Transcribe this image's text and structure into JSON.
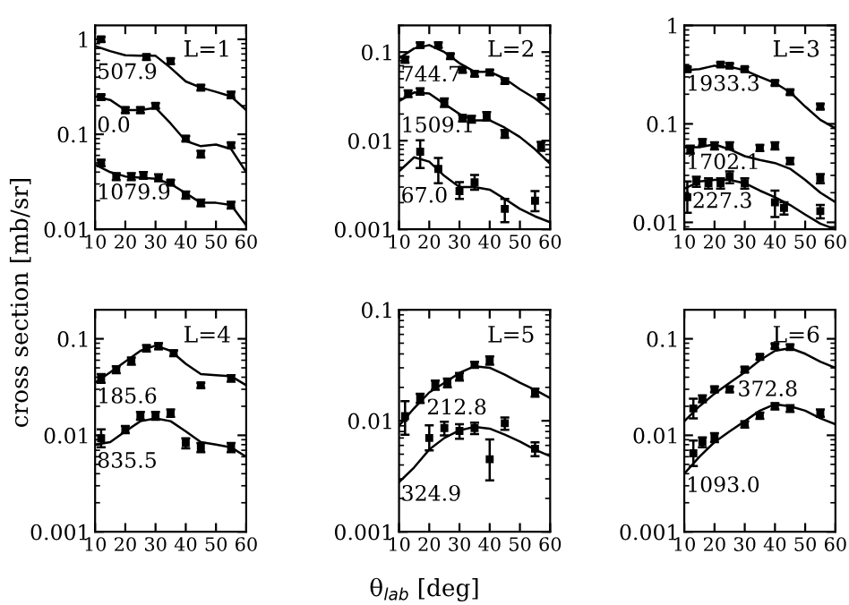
{
  "chart_data": [
    {
      "type": "scatter",
      "title": "L=1",
      "ylabel": "cross section [mb/sr]",
      "log": "y",
      "xlim": [
        10,
        60
      ],
      "xticks": [
        10,
        20,
        30,
        40,
        50,
        60
      ],
      "ylim": [
        0.01,
        1.4
      ],
      "yticks": [
        0.01,
        0.1,
        1
      ],
      "series": [
        {
          "name": "507.9",
          "marker": "square",
          "color": "#000000",
          "x": [
            12,
            27,
            35,
            45,
            55
          ],
          "values": [
            1.0,
            0.65,
            0.59,
            0.31,
            0.26
          ],
          "errors": [
            0.06,
            0.04,
            0.04,
            0.02,
            0.02
          ]
        },
        {
          "type": "line",
          "color": "#000000",
          "x": [
            10,
            15,
            20,
            25,
            30,
            35,
            40,
            45,
            50,
            55,
            60
          ],
          "values": [
            0.85,
            0.75,
            0.68,
            0.67,
            0.67,
            0.5,
            0.36,
            0.31,
            0.28,
            0.25,
            0.18
          ]
        },
        {
          "name": "0.0",
          "marker": "square",
          "color": "#000000",
          "x": [
            12,
            20,
            25,
            30,
            40,
            45,
            55
          ],
          "values": [
            0.246,
            0.18,
            0.18,
            0.2,
            0.09,
            0.062,
            0.077
          ],
          "errors": [
            0.015,
            0.012,
            0.012,
            0.013,
            0.006,
            0.005,
            0.005
          ]
        },
        {
          "type": "line",
          "color": "#000000",
          "x": [
            10,
            15,
            20,
            25,
            30,
            35,
            40,
            45,
            50,
            55,
            60
          ],
          "values": [
            0.25,
            0.23,
            0.18,
            0.18,
            0.19,
            0.13,
            0.085,
            0.075,
            0.078,
            0.07,
            0.04
          ]
        },
        {
          "name": "1079.9",
          "marker": "square",
          "color": "#000000",
          "x": [
            12,
            17,
            22,
            26,
            31,
            35,
            40,
            45,
            55
          ],
          "values": [
            0.05,
            0.036,
            0.036,
            0.037,
            0.035,
            0.031,
            0.023,
            0.019,
            0.018
          ],
          "errors": [
            0.004,
            0.003,
            0.003,
            0.003,
            0.003,
            0.002,
            0.002,
            0.0015,
            0.0015
          ]
        },
        {
          "type": "line",
          "color": "#000000",
          "x": [
            10,
            15,
            20,
            25,
            30,
            35,
            40,
            45,
            50,
            55,
            60
          ],
          "values": [
            0.048,
            0.04,
            0.036,
            0.035,
            0.034,
            0.03,
            0.024,
            0.019,
            0.019,
            0.018,
            0.011
          ]
        }
      ]
    },
    {
      "type": "scatter",
      "title": "L=2",
      "log": "y",
      "xlim": [
        10,
        60
      ],
      "xticks": [
        10,
        20,
        30,
        40,
        50,
        60
      ],
      "ylim": [
        0.001,
        0.2
      ],
      "yticks": [
        0.001,
        0.01,
        0.1
      ],
      "series": [
        {
          "name": "744.7",
          "marker": "square",
          "color": "#000000",
          "x": [
            12,
            17,
            23,
            27,
            31,
            35,
            40,
            45,
            57
          ],
          "values": [
            0.082,
            0.12,
            0.12,
            0.09,
            0.063,
            0.057,
            0.059,
            0.047,
            0.031
          ],
          "errors": [
            0.006,
            0.008,
            0.008,
            0.006,
            0.004,
            0.004,
            0.004,
            0.003,
            0.002
          ]
        },
        {
          "type": "line",
          "color": "#000000",
          "x": [
            10,
            15,
            20,
            25,
            30,
            35,
            40,
            45,
            50,
            55,
            60
          ],
          "values": [
            0.085,
            0.11,
            0.12,
            0.1,
            0.075,
            0.06,
            0.06,
            0.05,
            0.038,
            0.03,
            0.022
          ]
        },
        {
          "name": "1509.1",
          "marker": "square",
          "color": "#000000",
          "x": [
            13,
            17,
            25,
            31,
            34,
            39,
            45,
            57
          ],
          "values": [
            0.034,
            0.036,
            0.027,
            0.018,
            0.0175,
            0.019,
            0.012,
            0.0087
          ],
          "errors": [
            0.003,
            0.003,
            0.003,
            0.0015,
            0.0015,
            0.002,
            0.0012,
            0.001
          ]
        },
        {
          "type": "line",
          "color": "#000000",
          "x": [
            10,
            15,
            20,
            25,
            30,
            35,
            40,
            45,
            50,
            55,
            60
          ],
          "values": [
            0.028,
            0.035,
            0.034,
            0.026,
            0.02,
            0.017,
            0.017,
            0.014,
            0.011,
            0.008,
            0.0055
          ]
        },
        {
          "name": "67.0",
          "marker": "square",
          "color": "#000000",
          "x": [
            17,
            23,
            30,
            35,
            45,
            55
          ],
          "values": [
            0.0075,
            0.0048,
            0.0027,
            0.0034,
            0.0017,
            0.0021
          ],
          "errors": [
            [
              0.0049,
              0.0101
            ],
            [
              0.0033,
              0.0064
            ],
            [
              0.0022,
              0.0034
            ],
            [
              0.0028,
              0.0041
            ],
            [
              0.0012,
              0.0022
            ],
            [
              0.0016,
              0.0027
            ]
          ]
        },
        {
          "type": "line",
          "color": "#000000",
          "x": [
            10,
            15,
            20,
            25,
            30,
            35,
            40,
            45,
            50,
            55,
            60
          ],
          "values": [
            0.0045,
            0.0065,
            0.0058,
            0.004,
            0.003,
            0.003,
            0.0028,
            0.0022,
            0.0017,
            0.0014,
            0.0012
          ]
        }
      ]
    },
    {
      "type": "scatter",
      "title": "L=3",
      "log": "y",
      "xlim": [
        10,
        60
      ],
      "xticks": [
        10,
        20,
        30,
        40,
        50,
        60
      ],
      "ylim": [
        0.0085,
        1
      ],
      "yticks": [
        0.01,
        0.1,
        1
      ],
      "series": [
        {
          "name": "1933.3",
          "marker": "square",
          "color": "#000000",
          "x": [
            11,
            22,
            25,
            30,
            40,
            45,
            55
          ],
          "values": [
            0.36,
            0.4,
            0.39,
            0.36,
            0.26,
            0.21,
            0.15
          ],
          "errors": [
            0.02,
            0.02,
            0.02,
            0.02,
            0.015,
            0.012,
            0.01
          ]
        },
        {
          "type": "line",
          "color": "#000000",
          "x": [
            10,
            15,
            20,
            25,
            30,
            35,
            40,
            45,
            50,
            55,
            60
          ],
          "values": [
            0.35,
            0.36,
            0.39,
            0.38,
            0.35,
            0.3,
            0.26,
            0.21,
            0.15,
            0.11,
            0.09
          ]
        },
        {
          "name": "1702.1",
          "marker": "square",
          "color": "#000000",
          "x": [
            12,
            16,
            20,
            25,
            35,
            40,
            45,
            55
          ],
          "values": [
            0.055,
            0.065,
            0.06,
            0.06,
            0.057,
            0.06,
            0.042,
            0.028
          ],
          "errors": [
            0.005,
            0.005,
            0.005,
            0.005,
            0.004,
            0.005,
            0.003,
            0.003
          ]
        },
        {
          "type": "line",
          "color": "#000000",
          "x": [
            10,
            15,
            20,
            25,
            30,
            35,
            40,
            45,
            50,
            55,
            60
          ],
          "values": [
            0.058,
            0.058,
            0.062,
            0.055,
            0.047,
            0.043,
            0.04,
            0.035,
            0.027,
            0.02,
            0.016
          ]
        },
        {
          "name": "227.3",
          "marker": "square",
          "color": "#000000",
          "x": [
            11,
            14,
            18,
            22,
            25,
            30,
            40,
            43,
            55
          ],
          "values": [
            0.018,
            0.026,
            0.025,
            0.025,
            0.029,
            0.025,
            0.016,
            0.014,
            0.013
          ],
          "errors": [
            [
              0.0125,
              0.026
            ],
            0.003,
            0.003,
            0.003,
            0.004,
            0.003,
            [
              0.0113,
              0.021
            ],
            0.002,
            0.002
          ]
        },
        {
          "type": "line",
          "color": "#000000",
          "x": [
            10,
            15,
            20,
            25,
            30,
            35,
            40,
            45,
            50,
            55,
            60
          ],
          "values": [
            0.022,
            0.026,
            0.027,
            0.027,
            0.025,
            0.021,
            0.018,
            0.015,
            0.012,
            0.0097,
            0.0085
          ]
        }
      ]
    },
    {
      "type": "scatter",
      "title": "L=4",
      "log": "y",
      "xlim": [
        10,
        60
      ],
      "xticks": [
        10,
        20,
        30,
        40,
        50,
        60
      ],
      "ylim": [
        0.001,
        0.2
      ],
      "yticks": [
        0.001,
        0.01,
        0.1
      ],
      "series": [
        {
          "name": "185.6",
          "marker": "square",
          "color": "#000000",
          "x": [
            12,
            17,
            22,
            27,
            31,
            36,
            45,
            55
          ],
          "values": [
            0.039,
            0.048,
            0.059,
            0.08,
            0.084,
            0.071,
            0.033,
            0.039
          ],
          "errors": [
            0.004,
            0.004,
            0.005,
            0.006,
            0.006,
            0.005,
            0.002,
            0.003
          ]
        },
        {
          "type": "line",
          "color": "#000000",
          "x": [
            10,
            15,
            20,
            25,
            30,
            35,
            40,
            45,
            50,
            55,
            60
          ],
          "values": [
            0.035,
            0.045,
            0.058,
            0.075,
            0.085,
            0.075,
            0.055,
            0.043,
            0.042,
            0.041,
            0.033
          ]
        },
        {
          "name": "835.5",
          "marker": "square",
          "color": "#000000",
          "x": [
            12,
            20,
            25,
            30,
            35,
            40,
            45,
            55
          ],
          "values": [
            0.0093,
            0.0115,
            0.016,
            0.016,
            0.017,
            0.0083,
            0.0075,
            0.0075
          ],
          "errors": [
            [
              0.0075,
              0.0115
            ],
            0.001,
            0.0015,
            0.0015,
            0.0015,
            0.001,
            0.0008,
            0.0008
          ]
        },
        {
          "type": "line",
          "color": "#000000",
          "x": [
            10,
            15,
            20,
            25,
            30,
            35,
            40,
            45,
            50,
            55,
            60
          ],
          "values": [
            0.008,
            0.0085,
            0.011,
            0.014,
            0.015,
            0.014,
            0.011,
            0.0085,
            0.008,
            0.0075,
            0.006
          ]
        }
      ]
    },
    {
      "type": "scatter",
      "title": "L=5",
      "xlabel": "θ$_{lab}$ [deg]",
      "log": "y",
      "xlim": [
        10,
        60
      ],
      "xticks": [
        10,
        20,
        30,
        40,
        50,
        60
      ],
      "ylim": [
        0.001,
        0.1
      ],
      "yticks": [
        0.001,
        0.01,
        0.1
      ],
      "series": [
        {
          "name": "212.8",
          "marker": "square",
          "color": "#000000",
          "x": [
            12,
            17,
            22,
            26,
            30,
            35,
            40,
            55
          ],
          "values": [
            0.011,
            0.016,
            0.021,
            0.022,
            0.025,
            0.032,
            0.035,
            0.018
          ],
          "errors": [
            [
              0.0075,
              0.015
            ],
            0.0015,
            0.002,
            0.002,
            0.002,
            0.002,
            0.003,
            0.0015
          ]
        },
        {
          "type": "line",
          "color": "#000000",
          "x": [
            10,
            15,
            20,
            25,
            30,
            35,
            40,
            45,
            50,
            55,
            60
          ],
          "values": [
            0.009,
            0.013,
            0.018,
            0.022,
            0.027,
            0.031,
            0.03,
            0.026,
            0.022,
            0.019,
            0.016
          ]
        },
        {
          "name": "324.9",
          "marker": "square",
          "color": "#000000",
          "x": [
            20,
            25,
            30,
            35,
            40,
            45,
            55
          ],
          "values": [
            0.007,
            0.0086,
            0.0081,
            0.0086,
            0.0045,
            0.0095,
            0.0056
          ],
          "errors": [
            [
              0.0054,
              0.0091
            ],
            0.0012,
            0.0012,
            0.001,
            [
              0.0029,
              0.0068
            ],
            0.0012,
            0.0008
          ]
        },
        {
          "type": "line",
          "color": "#000000",
          "x": [
            10,
            15,
            20,
            25,
            30,
            35,
            40,
            45,
            50,
            55,
            60
          ],
          "values": [
            0.0028,
            0.0038,
            0.0055,
            0.007,
            0.0082,
            0.0088,
            0.0085,
            0.0075,
            0.0065,
            0.0055,
            0.0048
          ]
        }
      ]
    },
    {
      "type": "scatter",
      "title": "L=6",
      "log": "y",
      "xlim": [
        10,
        60
      ],
      "xticks": [
        10,
        20,
        30,
        40,
        50,
        60
      ],
      "ylim": [
        0.001,
        0.2
      ],
      "yticks": [
        0.001,
        0.01,
        0.1
      ],
      "series": [
        {
          "name": "372.8",
          "marker": "square",
          "color": "#000000",
          "x": [
            13,
            16,
            20,
            25,
            30,
            35,
            40,
            45
          ],
          "values": [
            0.019,
            0.024,
            0.03,
            0.03,
            0.048,
            0.065,
            0.084,
            0.082
          ],
          "errors": [
            [
              0.015,
              0.024
            ],
            0.002,
            0.002,
            0.002,
            0.003,
            0.004,
            0.005,
            0.005
          ]
        },
        {
          "type": "line",
          "color": "#000000",
          "x": [
            10,
            15,
            20,
            25,
            30,
            35,
            40,
            45,
            50,
            55,
            60
          ],
          "values": [
            0.014,
            0.02,
            0.027,
            0.035,
            0.045,
            0.06,
            0.075,
            0.08,
            0.07,
            0.058,
            0.05
          ]
        },
        {
          "name": "1093.0",
          "marker": "square",
          "color": "#000000",
          "x": [
            13,
            16,
            20,
            30,
            35,
            40,
            45,
            55
          ],
          "values": [
            0.0065,
            0.0085,
            0.0095,
            0.013,
            0.016,
            0.02,
            0.019,
            0.017
          ],
          "errors": [
            [
              0.0048,
              0.0088
            ],
            0.001,
            0.001,
            0.001,
            0.0012,
            0.0015,
            0.0015,
            0.0015
          ]
        },
        {
          "type": "line",
          "color": "#000000",
          "x": [
            10,
            15,
            20,
            25,
            30,
            35,
            40,
            45,
            50,
            55,
            60
          ],
          "values": [
            0.004,
            0.006,
            0.0085,
            0.011,
            0.014,
            0.018,
            0.021,
            0.02,
            0.018,
            0.015,
            0.013
          ]
        }
      ]
    }
  ]
}
